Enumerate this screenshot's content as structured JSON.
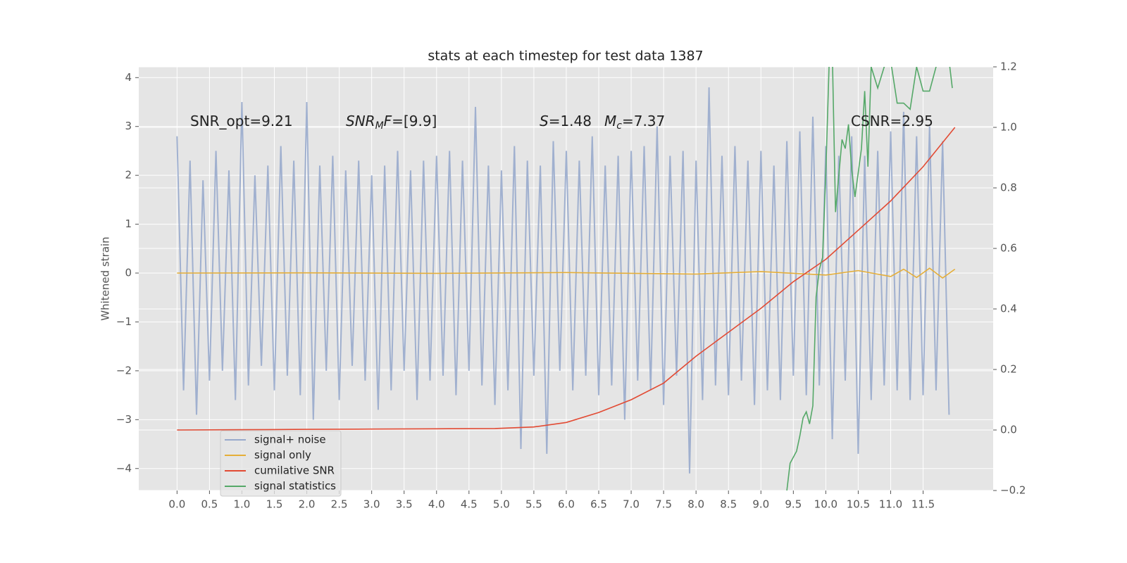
{
  "chart_data": {
    "type": "line",
    "title": "stats at each timestep for test data 1387",
    "ylabel": "Whitened strain",
    "xlim": [
      -0.59,
      12.58
    ],
    "ylim": [
      -4.45,
      4.22
    ],
    "y2lim": [
      -0.2,
      1.2
    ],
    "grid": true,
    "legend": "lower left",
    "xticks": [
      {
        "value": 0,
        "label": "0.0"
      },
      0.5,
      {
        "value": 1,
        "label": "1.0"
      },
      1.5,
      {
        "value": 2,
        "label": "2.0"
      },
      2.5,
      {
        "value": 3,
        "label": "3.0"
      },
      3.5,
      {
        "value": 4,
        "label": "4.0"
      },
      4.5,
      {
        "value": 5,
        "label": "5.0"
      },
      5.5,
      {
        "value": 6,
        "label": "6.0"
      },
      6.5,
      {
        "value": 7,
        "label": "7.0"
      },
      7.5,
      {
        "value": 8,
        "label": "8.0"
      },
      8.5,
      {
        "value": 9,
        "label": "9.0"
      },
      9.5,
      {
        "value": 10,
        "label": "10.0"
      },
      10.5,
      {
        "value": 11,
        "label": "11.0"
      },
      11.5
    ],
    "yticks": [
      {
        "value": -4,
        "label": "−4"
      },
      {
        "value": -3,
        "label": "−3"
      },
      {
        "value": -2,
        "label": "−2"
      },
      {
        "value": -1,
        "label": "−1"
      },
      0,
      1,
      2,
      3,
      4
    ],
    "y2ticks": [
      {
        "value": -0.2,
        "label": "−0.2"
      },
      {
        "value": 0,
        "label": "0.0"
      },
      0.2,
      0.4,
      0.6,
      0.8,
      {
        "value": 1,
        "label": "1.0"
      },
      1.2
    ],
    "annotations": [
      [
        {
          "text": "SNR_opt=9.21"
        }
      ],
      [
        {
          "text": "SNR",
          "italic": true
        },
        {
          "text": "M",
          "italic": true,
          "sub": true
        },
        {
          "text": "F",
          "italic": true
        },
        {
          "text": "=[9.9]"
        }
      ],
      [
        {
          "text": "S",
          "italic": true
        },
        {
          "text": "=1.48"
        }
      ],
      [
        {
          "text": "M",
          "italic": true
        },
        {
          "text": "c",
          "italic": true,
          "sub": true
        },
        {
          "text": "=7.37"
        }
      ],
      [
        {
          "text": "CSNR=2.95"
        }
      ]
    ],
    "series": [
      {
        "name": "signal+ noise",
        "color": "#98aacc",
        "axis": "y",
        "x": [
          0,
          0.1,
          0.2,
          0.3,
          0.4,
          0.5,
          0.6,
          0.7,
          0.8,
          0.9,
          1,
          1.1,
          1.2,
          1.3,
          1.4,
          1.5,
          1.6,
          1.7,
          1.8,
          1.9,
          2,
          2.1,
          2.2,
          2.3,
          2.4,
          2.5,
          2.6,
          2.7,
          2.8,
          2.9,
          3,
          3.1,
          3.2,
          3.3,
          3.4,
          3.5,
          3.6,
          3.7,
          3.8,
          3.9,
          4,
          4.1,
          4.2,
          4.3,
          4.4,
          4.5,
          4.6,
          4.7,
          4.8,
          4.9,
          5,
          5.1,
          5.2,
          5.3,
          5.4,
          5.5,
          5.6,
          5.7,
          5.8,
          5.9,
          6,
          6.1,
          6.2,
          6.3,
          6.4,
          6.5,
          6.6,
          6.7,
          6.8,
          6.9,
          7,
          7.1,
          7.2,
          7.3,
          7.4,
          7.5,
          7.6,
          7.7,
          7.8,
          7.9,
          8,
          8.1,
          8.2,
          8.3,
          8.4,
          8.5,
          8.6,
          8.7,
          8.8,
          8.9,
          9,
          9.1,
          9.2,
          9.3,
          9.4,
          9.5,
          9.6,
          9.7,
          9.8,
          9.9,
          10,
          10.1,
          10.2,
          10.3,
          10.4,
          10.5,
          10.6,
          10.7,
          10.8,
          10.9,
          11,
          11.1,
          11.2,
          11.3,
          11.4,
          11.5,
          11.6,
          11.7,
          11.8,
          11.9
        ],
        "values": [
          2.8,
          -2.4,
          2.3,
          -2.9,
          1.9,
          -2.2,
          2.5,
          -2.0,
          2.1,
          -2.6,
          3.5,
          -2.3,
          2.0,
          -1.9,
          2.2,
          -2.4,
          2.6,
          -2.1,
          2.3,
          -2.5,
          3.5,
          -3.0,
          2.2,
          -2.0,
          2.4,
          -2.6,
          2.1,
          -1.9,
          2.3,
          -2.2,
          2.0,
          -2.8,
          2.2,
          -2.4,
          2.5,
          -2.0,
          2.1,
          -2.6,
          2.3,
          -2.2,
          2.4,
          -2.1,
          2.5,
          -2.5,
          2.3,
          -2.0,
          3.4,
          -2.3,
          2.2,
          -2.7,
          2.1,
          -2.4,
          2.6,
          -3.6,
          2.3,
          -2.1,
          2.2,
          -3.7,
          2.7,
          -2.0,
          2.5,
          -2.4,
          2.3,
          -2.1,
          2.8,
          -2.5,
          2.2,
          -2.3,
          2.4,
          -3.0,
          2.5,
          -2.2,
          2.6,
          -2.4,
          3.0,
          -2.7,
          2.4,
          -2.1,
          2.5,
          -4.1,
          2.3,
          -2.6,
          3.8,
          -2.3,
          2.4,
          -2.5,
          2.6,
          -2.2,
          2.3,
          -2.7,
          2.5,
          -2.4,
          2.2,
          -2.6,
          2.7,
          -2.1,
          2.9,
          -2.5,
          3.2,
          -2.3,
          2.6,
          -3.4,
          2.4,
          -2.2,
          2.8,
          -3.7,
          2.4,
          -2.6,
          2.5,
          -2.3,
          2.9,
          -2.4,
          3.3,
          -2.6,
          2.8,
          -2.5,
          3.0,
          -2.4,
          2.7,
          -2.9
        ]
      },
      {
        "name": "signal only",
        "color": "#e5ae38",
        "axis": "y",
        "x": [
          0,
          2,
          4,
          6,
          8,
          9,
          10,
          10.5,
          11,
          11.2,
          11.4,
          11.6,
          11.8,
          11.99
        ],
        "values": [
          0,
          0.005,
          -0.005,
          0.01,
          -0.02,
          0.03,
          -0.04,
          0.05,
          -0.07,
          0.08,
          -0.09,
          0.1,
          -0.1,
          0.08
        ]
      },
      {
        "name": "cumilative SNR",
        "color": "#e24a33",
        "axis": "y2",
        "x": [
          0,
          1,
          2,
          3,
          4,
          4.9,
          5.5,
          6,
          6.5,
          7,
          7.5,
          8,
          8.5,
          9,
          9.5,
          10,
          10.5,
          11,
          11.5,
          11.99
        ],
        "values": [
          0,
          0.001,
          0.002,
          0.003,
          0.004,
          0.005,
          0.01,
          0.025,
          0.058,
          0.1,
          0.155,
          0.244,
          0.323,
          0.402,
          0.49,
          0.564,
          0.66,
          0.757,
          0.87,
          1.0
        ]
      },
      {
        "name": "signal statistics",
        "color": "#55a868",
        "axis": "y2",
        "x": [
          9.4,
          9.45,
          9.55,
          9.6,
          9.65,
          9.7,
          9.75,
          9.8,
          9.85,
          9.9,
          9.95,
          10,
          10.05,
          10.1,
          10.15,
          10.25,
          10.3,
          10.35,
          10.4,
          10.45,
          10.55,
          10.6,
          10.65,
          10.7,
          10.8,
          10.9,
          11,
          11.1,
          11.2,
          11.3,
          11.4,
          11.5,
          11.6,
          11.7,
          11.8,
          11.9,
          11.95
        ],
        "values": [
          -0.2,
          -0.11,
          -0.07,
          -0.02,
          0.04,
          0.06,
          0.02,
          0.08,
          0.44,
          0.53,
          0.57,
          0.85,
          1.2,
          1.25,
          0.72,
          0.96,
          0.93,
          1.01,
          0.86,
          0.77,
          0.93,
          1.12,
          0.87,
          1.2,
          1.13,
          1.2,
          1.22,
          1.08,
          1.08,
          1.06,
          1.2,
          1.12,
          1.12,
          1.2,
          1.25,
          1.22,
          1.13
        ]
      }
    ]
  }
}
